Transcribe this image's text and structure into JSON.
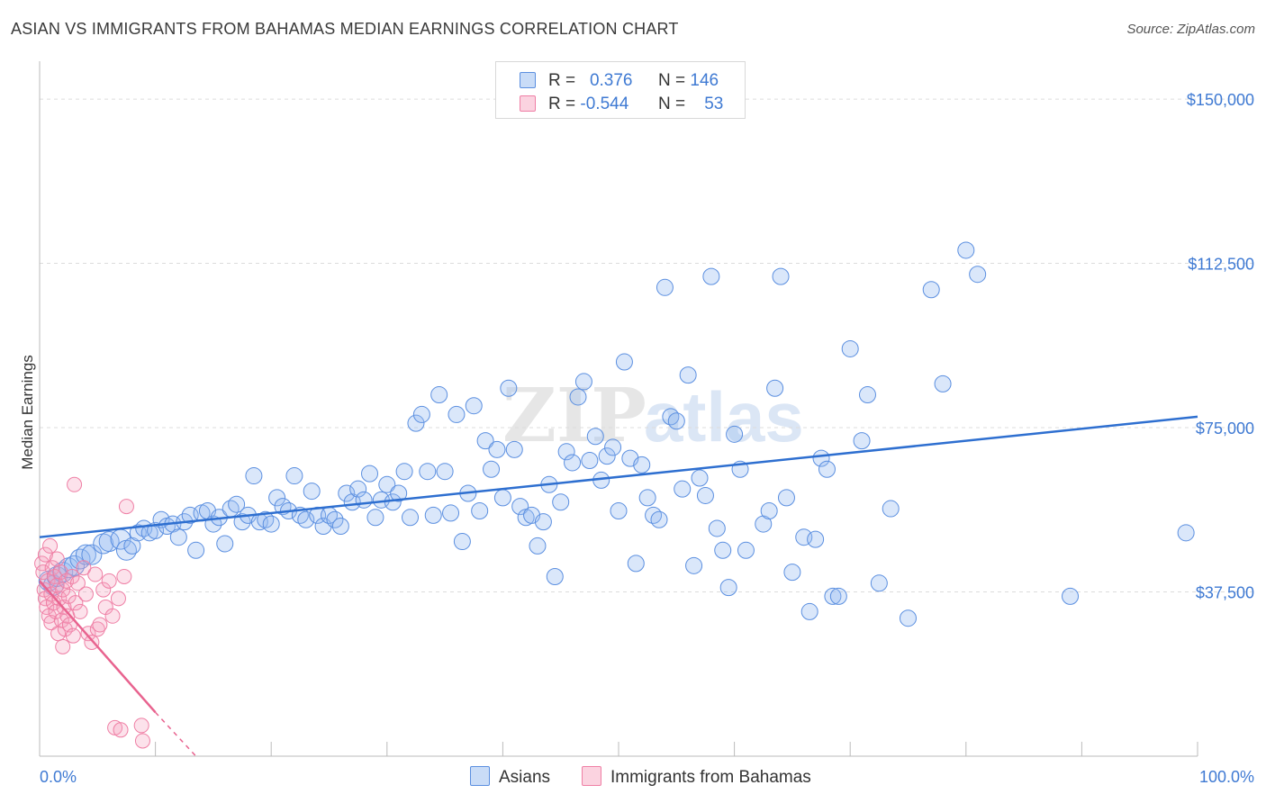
{
  "title": "ASIAN VS IMMIGRANTS FROM BAHAMAS MEDIAN EARNINGS CORRELATION CHART",
  "source": "Source: ZipAtlas.com",
  "watermark": {
    "zip": "ZIP",
    "atlas": "atlas"
  },
  "legend": {
    "rows": [
      {
        "r_label": "R =",
        "r_value": "0.376",
        "n_label": "N =",
        "n_value": "146",
        "color": "#a9c8f2"
      },
      {
        "r_label": "R =",
        "r_value": "-0.544",
        "n_label": "N =",
        "n_value": "53",
        "color": "#f7b6cb"
      }
    ]
  },
  "bottom_legend": [
    {
      "label": "Asians",
      "color": "#a9c8f2"
    },
    {
      "label": "Immigrants from Bahamas",
      "color": "#f7b6cb"
    }
  ],
  "colors": {
    "asian_fill": "rgba(150,187,240,0.35)",
    "asian_stroke": "#5b8fe0",
    "asian_line": "#2e6fd0",
    "bahamas_fill": "rgba(245,160,190,0.30)",
    "bahamas_stroke": "#ef7fa5",
    "bahamas_line": "#e8638f",
    "axis_text": "#3f7ad3",
    "grid": "#dcdcdc"
  },
  "chart_data": {
    "type": "scatter",
    "title": "ASIAN VS IMMIGRANTS FROM BAHAMAS MEDIAN EARNINGS CORRELATION CHART",
    "xlabel": "",
    "ylabel": "Median Earnings",
    "xlim": [
      0,
      100
    ],
    "ylim": [
      0,
      157000
    ],
    "x_tick_labels": [
      "0.0%",
      "100.0%"
    ],
    "y_ticks": [
      37500,
      75000,
      112500,
      150000
    ],
    "y_tick_labels": [
      "$37,500",
      "$75,000",
      "$112,500",
      "$150,000"
    ],
    "series": [
      {
        "name": "Asians",
        "trend": {
          "x": [
            0,
            100
          ],
          "y": [
            50000,
            77500
          ]
        },
        "points": [
          [
            0.8,
            40000
          ],
          [
            1.2,
            39000
          ],
          [
            1.5,
            41000
          ],
          [
            2.0,
            42000
          ],
          [
            2.5,
            43000
          ],
          [
            3.0,
            43500
          ],
          [
            3.5,
            45000
          ],
          [
            4.0,
            46000
          ],
          [
            4.5,
            46000
          ],
          [
            5.5,
            48500
          ],
          [
            6.0,
            49000
          ],
          [
            7.0,
            49500
          ],
          [
            7.5,
            47000
          ],
          [
            8.0,
            48000
          ],
          [
            8.5,
            51000
          ],
          [
            9.0,
            52000
          ],
          [
            9.5,
            51000
          ],
          [
            10.0,
            51500
          ],
          [
            10.5,
            54000
          ],
          [
            11.0,
            52500
          ],
          [
            11.5,
            53000
          ],
          [
            12.0,
            50000
          ],
          [
            12.5,
            53500
          ],
          [
            13.0,
            55000
          ],
          [
            13.5,
            47000
          ],
          [
            14.0,
            55500
          ],
          [
            14.5,
            56000
          ],
          [
            15.0,
            53000
          ],
          [
            15.5,
            54500
          ],
          [
            16.0,
            48500
          ],
          [
            16.5,
            56500
          ],
          [
            17.0,
            57500
          ],
          [
            17.5,
            53500
          ],
          [
            18.0,
            55000
          ],
          [
            18.5,
            64000
          ],
          [
            19.0,
            53500
          ],
          [
            19.5,
            54000
          ],
          [
            20.0,
            53000
          ],
          [
            20.5,
            59000
          ],
          [
            21.0,
            57000
          ],
          [
            21.5,
            56000
          ],
          [
            22.0,
            64000
          ],
          [
            22.5,
            55000
          ],
          [
            23.0,
            54000
          ],
          [
            23.5,
            60500
          ],
          [
            24.0,
            55000
          ],
          [
            24.5,
            52500
          ],
          [
            25.0,
            55000
          ],
          [
            25.5,
            54000
          ],
          [
            26.0,
            52500
          ],
          [
            26.5,
            60000
          ],
          [
            27.0,
            58000
          ],
          [
            27.5,
            61000
          ],
          [
            28.0,
            58500
          ],
          [
            28.5,
            64500
          ],
          [
            29.0,
            54500
          ],
          [
            29.5,
            58500
          ],
          [
            30.0,
            62000
          ],
          [
            30.5,
            58000
          ],
          [
            31.0,
            60000
          ],
          [
            31.5,
            65000
          ],
          [
            32.0,
            54500
          ],
          [
            32.5,
            76000
          ],
          [
            33.0,
            78000
          ],
          [
            33.5,
            65000
          ],
          [
            34.0,
            55000
          ],
          [
            34.5,
            82500
          ],
          [
            35.0,
            65000
          ],
          [
            35.5,
            55500
          ],
          [
            36.0,
            78000
          ],
          [
            36.5,
            49000
          ],
          [
            37.0,
            60000
          ],
          [
            37.5,
            80000
          ],
          [
            38.0,
            56000
          ],
          [
            38.5,
            72000
          ],
          [
            39.0,
            65500
          ],
          [
            39.5,
            70000
          ],
          [
            40.0,
            59000
          ],
          [
            40.5,
            84000
          ],
          [
            41.0,
            70000
          ],
          [
            41.5,
            57000
          ],
          [
            42.0,
            54500
          ],
          [
            42.5,
            55000
          ],
          [
            43.0,
            48000
          ],
          [
            43.5,
            53500
          ],
          [
            44.0,
            62000
          ],
          [
            44.5,
            41000
          ],
          [
            45.0,
            58000
          ],
          [
            45.5,
            69500
          ],
          [
            46.0,
            67000
          ],
          [
            46.5,
            82000
          ],
          [
            47.0,
            85500
          ],
          [
            47.5,
            67500
          ],
          [
            48.0,
            73000
          ],
          [
            48.5,
            63000
          ],
          [
            49.0,
            68500
          ],
          [
            49.5,
            70500
          ],
          [
            50.0,
            56000
          ],
          [
            50.5,
            90000
          ],
          [
            51.0,
            68000
          ],
          [
            51.5,
            44000
          ],
          [
            52.0,
            66500
          ],
          [
            52.5,
            59000
          ],
          [
            53.0,
            55000
          ],
          [
            53.5,
            54000
          ],
          [
            54.0,
            107000
          ],
          [
            54.5,
            77500
          ],
          [
            55.0,
            76500
          ],
          [
            55.5,
            61000
          ],
          [
            56.0,
            87000
          ],
          [
            56.5,
            43500
          ],
          [
            57.0,
            63500
          ],
          [
            57.5,
            59500
          ],
          [
            58.0,
            109500
          ],
          [
            58.5,
            52000
          ],
          [
            59.0,
            47000
          ],
          [
            59.5,
            38500
          ],
          [
            60.0,
            73500
          ],
          [
            60.5,
            65500
          ],
          [
            61.0,
            47000
          ],
          [
            62.5,
            53000
          ],
          [
            63.0,
            56000
          ],
          [
            63.5,
            84000
          ],
          [
            64.0,
            109500
          ],
          [
            64.5,
            59000
          ],
          [
            65.0,
            42000
          ],
          [
            66.0,
            50000
          ],
          [
            66.5,
            33000
          ],
          [
            67.0,
            49500
          ],
          [
            67.5,
            68000
          ],
          [
            68.0,
            65500
          ],
          [
            68.5,
            36500
          ],
          [
            69.0,
            36500
          ],
          [
            70.0,
            93000
          ],
          [
            71.0,
            72000
          ],
          [
            71.5,
            82500
          ],
          [
            72.5,
            39500
          ],
          [
            73.5,
            56500
          ],
          [
            75.0,
            31500
          ],
          [
            77.0,
            106500
          ],
          [
            78.0,
            85000
          ],
          [
            80.0,
            115500
          ],
          [
            81.0,
            110000
          ],
          [
            89.0,
            36500
          ],
          [
            99.0,
            51000
          ]
        ]
      },
      {
        "name": "Immigrants from Bahamas",
        "trend": {
          "x": [
            0,
            10
          ],
          "y": [
            40000,
            10000
          ]
        },
        "trend_extension": {
          "x": [
            10,
            13.5
          ],
          "y": [
            10000,
            0
          ]
        },
        "points": [
          [
            0.2,
            44000
          ],
          [
            0.3,
            42000
          ],
          [
            0.4,
            38000
          ],
          [
            0.5,
            36000
          ],
          [
            0.5,
            46000
          ],
          [
            0.6,
            34000
          ],
          [
            0.7,
            40000
          ],
          [
            0.8,
            32000
          ],
          [
            0.9,
            48000
          ],
          [
            1.0,
            37000
          ],
          [
            1.0,
            30500
          ],
          [
            1.1,
            43000
          ],
          [
            1.2,
            35000
          ],
          [
            1.3,
            41000
          ],
          [
            1.4,
            33000
          ],
          [
            1.5,
            39000
          ],
          [
            1.5,
            45000
          ],
          [
            1.6,
            28000
          ],
          [
            1.7,
            36000
          ],
          [
            1.8,
            42000
          ],
          [
            1.9,
            31000
          ],
          [
            2.0,
            38000
          ],
          [
            2.0,
            25000
          ],
          [
            2.1,
            34000
          ],
          [
            2.2,
            29000
          ],
          [
            2.3,
            40000
          ],
          [
            2.4,
            32000
          ],
          [
            2.5,
            36500
          ],
          [
            2.6,
            30000
          ],
          [
            2.8,
            41000
          ],
          [
            2.9,
            27500
          ],
          [
            3.0,
            62000
          ],
          [
            3.1,
            35000
          ],
          [
            3.3,
            39500
          ],
          [
            3.5,
            33000
          ],
          [
            3.8,
            43000
          ],
          [
            4.0,
            37000
          ],
          [
            4.2,
            28000
          ],
          [
            4.5,
            26000
          ],
          [
            4.8,
            41500
          ],
          [
            5.0,
            29000
          ],
          [
            5.2,
            30000
          ],
          [
            5.5,
            38000
          ],
          [
            5.7,
            34000
          ],
          [
            6.0,
            40000
          ],
          [
            6.3,
            32000
          ],
          [
            6.5,
            6500
          ],
          [
            6.8,
            36000
          ],
          [
            7.0,
            6000
          ],
          [
            7.3,
            41000
          ],
          [
            7.5,
            57000
          ],
          [
            8.8,
            7000
          ],
          [
            8.9,
            3500
          ]
        ]
      }
    ]
  }
}
